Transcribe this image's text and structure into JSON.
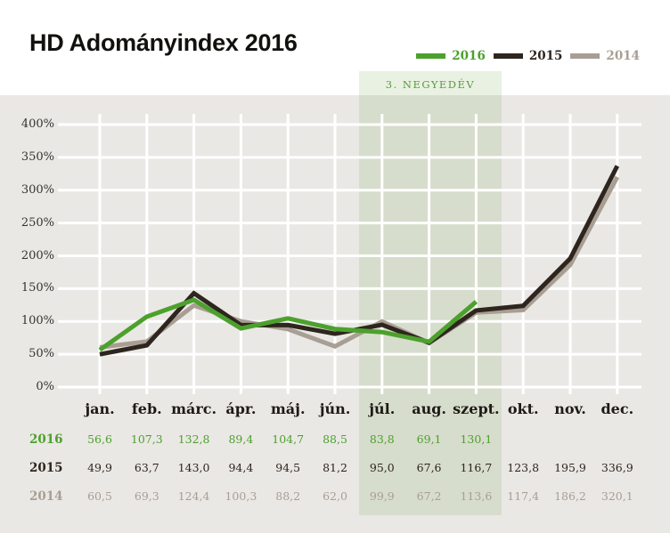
{
  "header": {
    "title": "HD Adományindex 2016"
  },
  "legend": {
    "items": [
      {
        "label": "2016",
        "color": "#4ca12d"
      },
      {
        "label": "2015",
        "color": "#2e251e"
      },
      {
        "label": "2014",
        "color": "#a89e93"
      }
    ]
  },
  "quarter_highlight": {
    "label": "3. NEGYEDÉV"
  },
  "chart_data": {
    "type": "line",
    "title": "HD Adományindex 2016",
    "categories": [
      "jan.",
      "feb.",
      "márc.",
      "ápr.",
      "máj.",
      "jún.",
      "júl.",
      "aug.",
      "szept.",
      "okt.",
      "nov.",
      "dec."
    ],
    "series": [
      {
        "name": "2014",
        "color": "#a89e93",
        "values": [
          60.5,
          69.3,
          124.4,
          100.3,
          88.2,
          62.0,
          99.9,
          67.2,
          113.6,
          117.4,
          186.2,
          320.1
        ]
      },
      {
        "name": "2015",
        "color": "#2e251e",
        "values": [
          49.9,
          63.7,
          143.0,
          94.4,
          94.5,
          81.2,
          95.0,
          67.6,
          116.7,
          123.8,
          195.9,
          336.9
        ]
      },
      {
        "name": "2016",
        "color": "#4ca12d",
        "values": [
          56.6,
          107.3,
          132.8,
          89.4,
          104.7,
          88.5,
          83.8,
          69.1,
          130.1,
          null,
          null,
          null
        ]
      }
    ],
    "ylim": [
      0,
      400
    ],
    "ytick_step": 50,
    "ytick_labels": [
      "0%",
      "50%",
      "100%",
      "150%",
      "200%",
      "250%",
      "300%",
      "350%",
      "400%"
    ],
    "grid": true,
    "legend_position": "top-right",
    "highlight_region": {
      "label": "3. NEGYEDÉV",
      "from": "júl.",
      "to": "szept."
    }
  },
  "table": {
    "rows": [
      {
        "label": "2016",
        "color": "#4ca12d",
        "values": [
          "56,6",
          "107,3",
          "132,8",
          "89,4",
          "104,7",
          "88,5",
          "83,8",
          "69,1",
          "130,1",
          "",
          "",
          ""
        ]
      },
      {
        "label": "2015",
        "color": "#2e251e",
        "values": [
          "49,9",
          "63,7",
          "143,0",
          "94,4",
          "94,5",
          "81,2",
          "95,0",
          "67,6",
          "116,7",
          "123,8",
          "195,9",
          "336,9"
        ]
      },
      {
        "label": "2014",
        "color": "#a89e93",
        "values": [
          "60,5",
          "69,3",
          "124,4",
          "100,3",
          "88,2",
          "62,0",
          "99,9",
          "67,2",
          "113,6",
          "117,4",
          "186,2",
          "320,1"
        ]
      }
    ]
  }
}
